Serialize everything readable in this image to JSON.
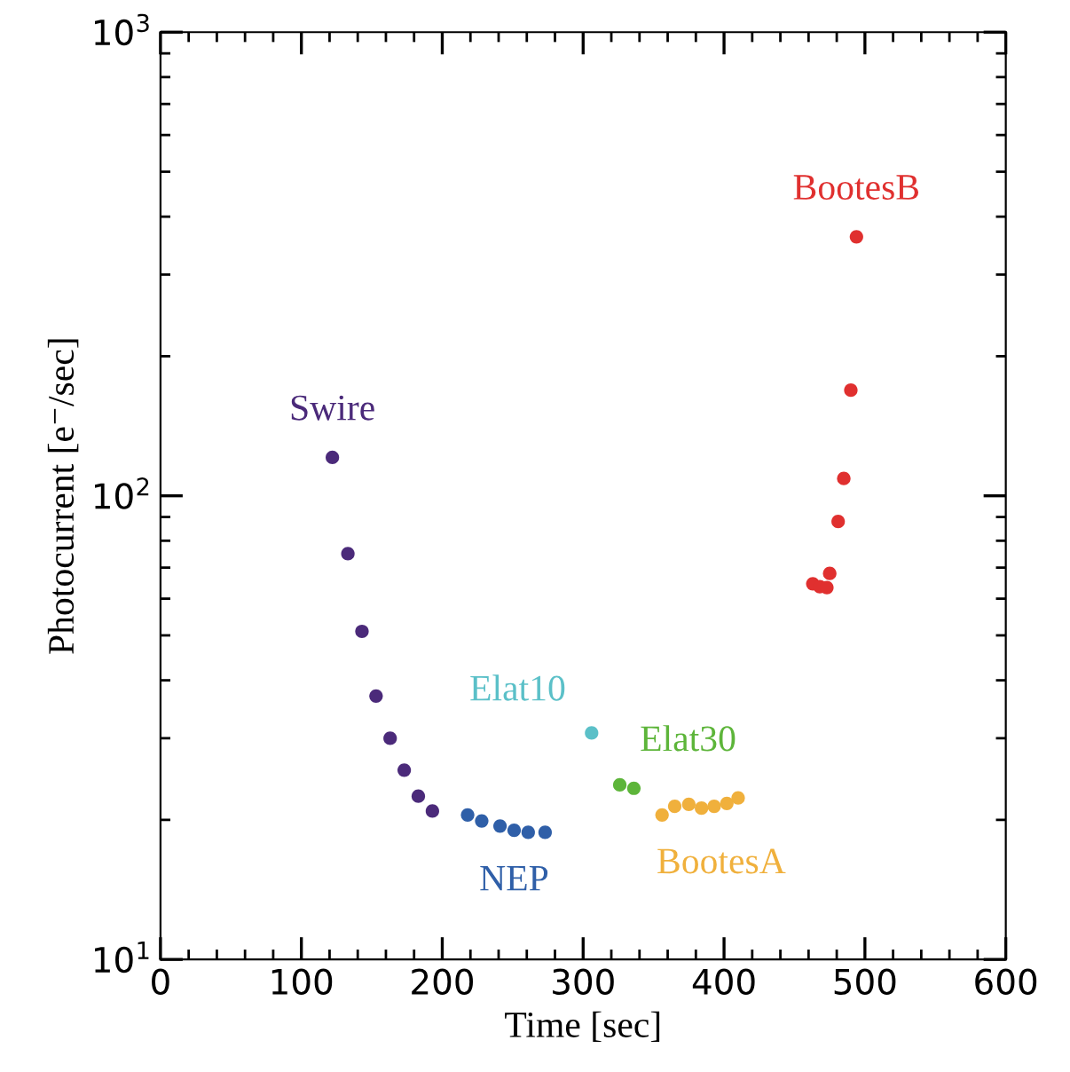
{
  "chart_data": {
    "type": "scatter",
    "xlabel": "Time [sec]",
    "ylabel": "Photocurrent [e⁻/sec]",
    "log": "y",
    "xlim": [
      0,
      600
    ],
    "xticks": [
      0,
      100,
      200,
      300,
      400,
      500,
      600
    ],
    "ylim": [
      10,
      1000
    ],
    "yticks": [
      {
        "value": 10,
        "label": "10$^{1}$"
      },
      {
        "value": 100,
        "label": "10$^{2}$"
      },
      {
        "value": 1000,
        "label": "10$^{3}$"
      }
    ],
    "marker": "circle",
    "grid": false,
    "legend": false,
    "series": [
      {
        "name": "Swire",
        "color": "#4b2a7a",
        "x": [
          122,
          133,
          143,
          153,
          163,
          173,
          183,
          193
        ],
        "values": [
          121,
          75,
          51,
          37,
          30,
          25.6,
          22.5,
          20.9
        ]
      },
      {
        "name": "NEP",
        "color": "#2f5fa8",
        "x": [
          218,
          228,
          241,
          251,
          261,
          273
        ],
        "values": [
          20.5,
          19.9,
          19.4,
          19.0,
          18.8,
          18.8
        ]
      },
      {
        "name": "Elat10",
        "color": "#5bc0c8",
        "x": [
          306
        ],
        "values": [
          30.8
        ]
      },
      {
        "name": "Elat30",
        "color": "#5db53a",
        "x": [
          326,
          336
        ],
        "values": [
          23.8,
          23.4
        ]
      },
      {
        "name": "BootesA",
        "color": "#f0b03c",
        "x": [
          356,
          365,
          375,
          384,
          393,
          402,
          410
        ],
        "values": [
          20.5,
          21.4,
          21.6,
          21.2,
          21.4,
          21.7,
          22.3
        ]
      },
      {
        "name": "BootesB",
        "color": "#e0302f",
        "x": [
          463,
          468,
          473,
          475,
          481,
          485,
          490,
          494
        ],
        "values": [
          64.6,
          63.7,
          63.4,
          68,
          88,
          109,
          169,
          362
        ]
      }
    ]
  }
}
